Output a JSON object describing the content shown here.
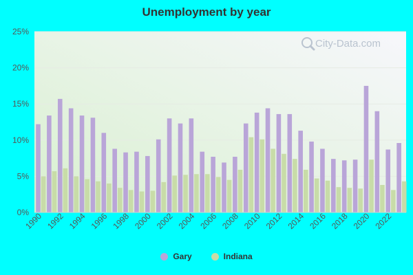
{
  "chart_data": {
    "type": "bar",
    "title": "Unemployment by year",
    "xlabel": "",
    "ylabel": "",
    "ylim": [
      0,
      25
    ],
    "y_ticks": [
      "0%",
      "5%",
      "10%",
      "15%",
      "20%",
      "25%"
    ],
    "categories": [
      "1990",
      "1991",
      "1992",
      "1993",
      "1994",
      "1995",
      "1996",
      "1997",
      "1998",
      "1999",
      "2000",
      "2001",
      "2002",
      "2003",
      "2004",
      "2005",
      "2006",
      "2007",
      "2008",
      "2009",
      "2010",
      "2011",
      "2012",
      "2013",
      "2014",
      "2015",
      "2016",
      "2017",
      "2018",
      "2019",
      "2020",
      "2021",
      "2022",
      "2023"
    ],
    "x_tick_labels": [
      "1990",
      "1992",
      "1994",
      "1996",
      "1998",
      "2000",
      "2002",
      "2004",
      "2006",
      "2008",
      "2010",
      "2012",
      "2014",
      "2016",
      "2018",
      "2020",
      "2022"
    ],
    "series": [
      {
        "name": "Gary",
        "color": "#b9a5d8",
        "values": [
          12.2,
          13.4,
          15.7,
          14.4,
          13.4,
          13.1,
          11.0,
          8.8,
          8.3,
          8.4,
          7.8,
          10.1,
          13.0,
          12.3,
          13.0,
          8.4,
          7.7,
          6.9,
          7.7,
          12.3,
          13.8,
          14.4,
          13.6,
          13.6,
          11.3,
          9.8,
          8.8,
          7.4,
          7.2,
          7.3,
          17.5,
          14.0,
          8.7,
          9.6
        ]
      },
      {
        "name": "Indiana",
        "color": "#c8dca8",
        "values": [
          5.0,
          5.7,
          6.1,
          5.0,
          4.6,
          4.3,
          4.0,
          3.4,
          3.1,
          2.9,
          3.0,
          4.2,
          5.1,
          5.2,
          5.3,
          5.3,
          4.9,
          4.5,
          5.9,
          10.4,
          10.1,
          8.8,
          8.1,
          7.4,
          5.9,
          4.7,
          4.4,
          3.5,
          3.4,
          3.3,
          7.3,
          3.8,
          3.1,
          4.3
        ]
      }
    ],
    "legend_position": "bottom",
    "grid": true
  },
  "watermark": {
    "text": "City-Data.com",
    "icon": "magnifier-icon"
  },
  "colors": {
    "background": "#00ffff"
  }
}
